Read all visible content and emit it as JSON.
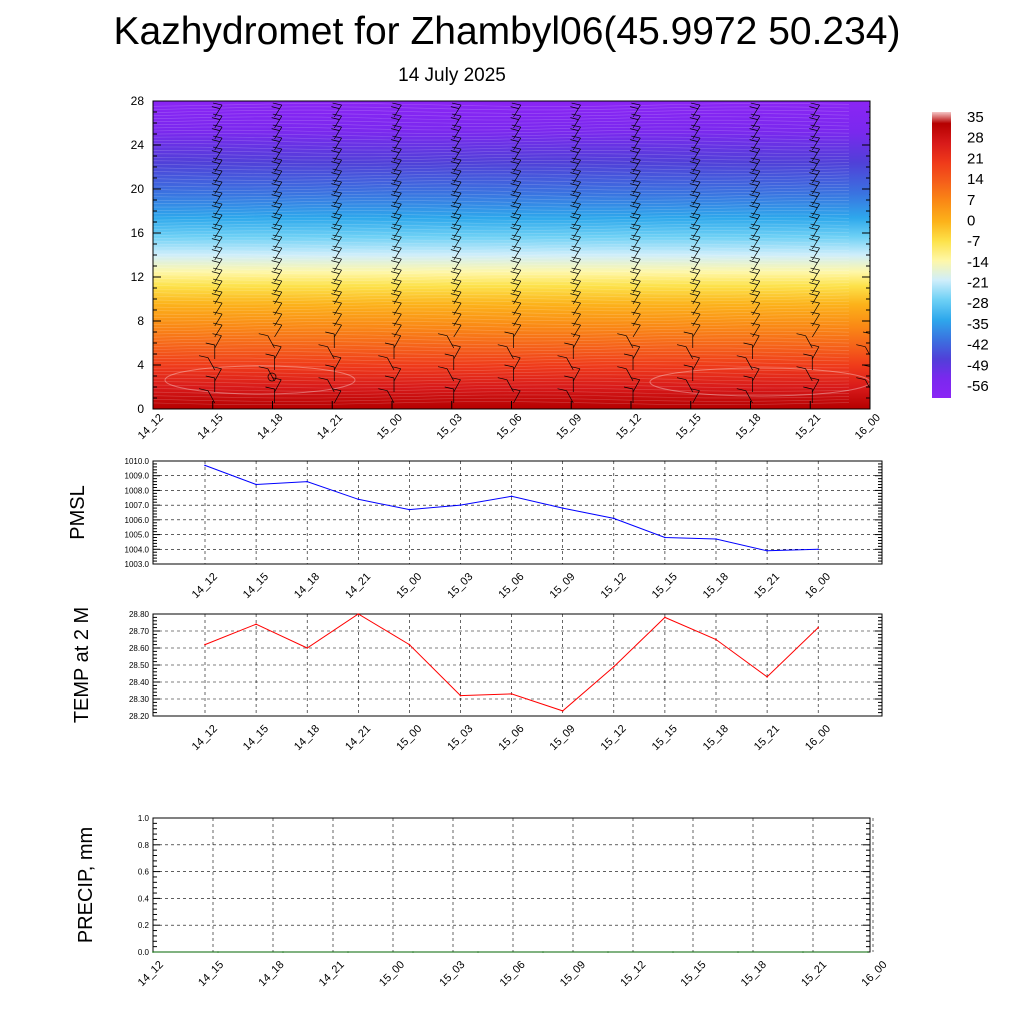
{
  "title": "Kazhydromet for Zhambyl06(45.9972 50.234)",
  "subtitle": "14 July 2025",
  "chart_data": [
    {
      "type": "heatmap",
      "title": "",
      "xlabel": "",
      "ylabel": "",
      "x_tick_labels": [
        "14_12",
        "14_15",
        "14_18",
        "14_21",
        "15_00",
        "15_03",
        "15_06",
        "15_09",
        "15_12",
        "15_15",
        "15_18",
        "15_21",
        "16_00"
      ],
      "y_ticks": [
        0,
        4,
        8,
        12,
        16,
        20,
        24,
        28
      ],
      "ylim": [
        0,
        28
      ],
      "colorbar_labels": [
        "35",
        "28",
        "21",
        "14",
        "7",
        "0",
        "-7",
        "-14",
        "-21",
        "-28",
        "-35",
        "-42",
        "-49",
        "-56"
      ],
      "colorscale": [
        "#b50000",
        "#d81a1a",
        "#ef3a1a",
        "#f5601a",
        "#fa8a15",
        "#fcb21a",
        "#fde24a",
        "#fef7a8",
        "#cfeefb",
        "#6dd0f5",
        "#2ea8ec",
        "#3a73e0",
        "#5040d8",
        "#7a28ee",
        "#8b25f5"
      ],
      "legend_position": "right",
      "wind_barbs": true,
      "grid": false
    },
    {
      "type": "line",
      "ylabel": "PMSL",
      "x_tick_labels": [
        "14_12",
        "14_15",
        "14_18",
        "14_21",
        "15_00",
        "15_03",
        "15_06",
        "15_09",
        "15_12",
        "15_15",
        "15_18",
        "15_21",
        "16_00"
      ],
      "y_tick_labels": [
        "1010.0",
        "1009.0",
        "1008.0",
        "1007.0",
        "1006.0",
        "1005.0",
        "1004.0",
        "1003.0"
      ],
      "ylim": [
        1003,
        1010
      ],
      "grid": true,
      "series": [
        {
          "color": "#0000ff",
          "values": [
            1009.7,
            1008.4,
            1008.6,
            1007.4,
            1006.7,
            1007.0,
            1007.6,
            1006.8,
            1006.1,
            1004.8,
            1004.7,
            1003.9,
            1004.0
          ]
        }
      ]
    },
    {
      "type": "line",
      "ylabel": "TEMP at 2 M",
      "x_tick_labels": [
        "14_12",
        "14_15",
        "14_18",
        "14_21",
        "15_00",
        "15_03",
        "15_06",
        "15_09",
        "15_12",
        "15_15",
        "15_18",
        "15_21",
        "16_00"
      ],
      "y_tick_labels": [
        "28.80",
        "28.70",
        "28.60",
        "28.50",
        "28.40",
        "28.30",
        "28.20"
      ],
      "ylim": [
        28.2,
        28.8
      ],
      "grid": true,
      "series": [
        {
          "color": "#ff0000",
          "values": [
            28.62,
            28.74,
            28.6,
            28.8,
            28.62,
            28.32,
            28.33,
            28.23,
            28.49,
            28.78,
            28.65,
            28.43,
            28.72
          ]
        }
      ]
    },
    {
      "type": "line",
      "ylabel": "PRECIP, mm",
      "x_tick_labels": [
        "14_12",
        "14_15",
        "14_18",
        "14_21",
        "15_00",
        "15_03",
        "15_06",
        "15_09",
        "15_12",
        "15_15",
        "15_18",
        "15_21",
        "16_00"
      ],
      "y_tick_labels": [
        "1.0",
        "0.8",
        "0.6",
        "0.4",
        "0.2",
        "0.0"
      ],
      "ylim": [
        0,
        1
      ],
      "grid": true,
      "series": [
        {
          "color": "#006400",
          "values": [
            0,
            0,
            0,
            0,
            0,
            0,
            0,
            0,
            0,
            0,
            0,
            0
          ]
        }
      ]
    }
  ]
}
